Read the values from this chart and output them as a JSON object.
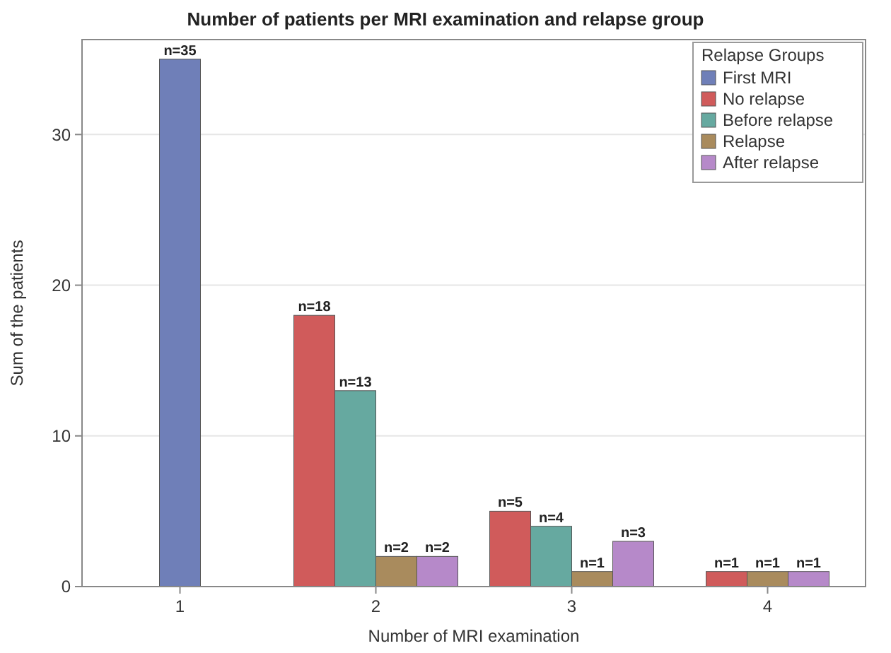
{
  "chart_data": {
    "type": "bar",
    "title": "Number of patients per MRI examination and relapse group",
    "xlabel": "Number of MRI examination",
    "ylabel": "Sum of the patients",
    "legend_title": "Relapse Groups",
    "categories": [
      "1",
      "2",
      "3",
      "4"
    ],
    "series": [
      {
        "name": "First MRI",
        "color": "#6f7fb8",
        "values": [
          35,
          null,
          null,
          null
        ],
        "value_labels": [
          "n=35",
          null,
          null,
          null
        ]
      },
      {
        "name": "No relapse",
        "color": "#d05b5b",
        "values": [
          null,
          18,
          5,
          1
        ],
        "value_labels": [
          null,
          "n=18",
          "n=5",
          "n=1"
        ]
      },
      {
        "name": "Before relapse",
        "color": "#66a9a0",
        "values": [
          null,
          13,
          4,
          null
        ],
        "value_labels": [
          null,
          "n=13",
          "n=4",
          null
        ]
      },
      {
        "name": "Relapse",
        "color": "#a98b5d",
        "values": [
          null,
          2,
          1,
          1
        ],
        "value_labels": [
          null,
          "n=2",
          "n=1",
          "n=1"
        ]
      },
      {
        "name": "After relapse",
        "color": "#b689c9",
        "values": [
          null,
          2,
          3,
          1
        ],
        "value_labels": [
          null,
          "n=2",
          "n=3",
          "n=1"
        ]
      }
    ],
    "ylim": [
      0,
      36.3
    ],
    "yticks": [
      0,
      10,
      20,
      30
    ],
    "grid": "y",
    "legend": "top right"
  }
}
